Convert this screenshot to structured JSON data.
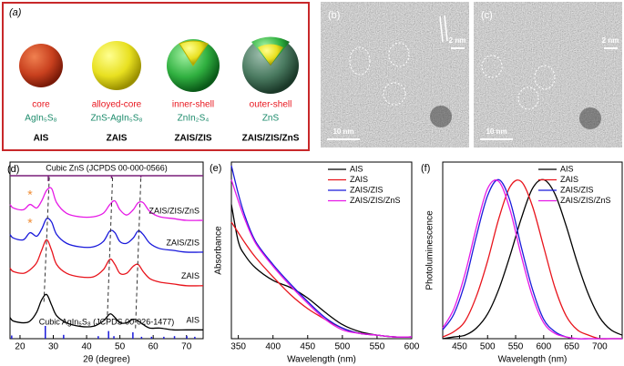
{
  "panel_a": {
    "label": "(a)",
    "items": [
      {
        "role": "core",
        "composition": "AgIn₅S₈",
        "name": "AIS"
      },
      {
        "role": "alloyed-core",
        "composition": "ZnS-AgIn₅S₈",
        "name": "ZAIS"
      },
      {
        "role": "inner-shell",
        "composition": "ZnIn₂S₄",
        "name": "ZAIS/ZIS"
      },
      {
        "role": "outer-shell",
        "composition": "ZnS",
        "name": "ZAIS/ZIS/ZnS"
      }
    ]
  },
  "panel_b": {
    "label": "(b)",
    "inset_scale": "2 nm",
    "scale": "10 nm"
  },
  "panel_c": {
    "label": "(c)",
    "inset_scale": "2 nm",
    "scale": "10 nm"
  },
  "chart_data": [
    {
      "type": "line",
      "panel_label": "(d)",
      "xlabel": "2θ (degree)",
      "xlim": [
        17,
        75
      ],
      "xticks": [
        20,
        30,
        40,
        50,
        60,
        70
      ],
      "ylim": [
        0,
        10
      ],
      "x": [
        17,
        18,
        21,
        23,
        25,
        26.5,
        28,
        29.5,
        31,
        34,
        38,
        42,
        45,
        47,
        48.5,
        50,
        52,
        54,
        55.5,
        57,
        59,
        62,
        66,
        70,
        75
      ],
      "series": [
        {
          "name": "AIS",
          "color": "#000000",
          "values": [
            1.2,
            1.0,
            0.9,
            1.0,
            1.5,
            2.2,
            2.5,
            1.9,
            1.3,
            0.9,
            0.7,
            0.7,
            1.0,
            1.4,
            1.2,
            0.9,
            0.9,
            1.1,
            1.0,
            0.8,
            0.6,
            0.6,
            0.5,
            0.5,
            0.5
          ]
        },
        {
          "name": "ZAIS",
          "color": "#e8141c",
          "values": [
            4.0,
            3.8,
            3.7,
            3.9,
            4.3,
            5.0,
            5.6,
            5.0,
            4.2,
            3.7,
            3.5,
            3.5,
            3.9,
            4.5,
            4.2,
            3.7,
            3.7,
            4.1,
            4.2,
            3.8,
            3.4,
            3.2,
            3.1,
            3.0,
            3.0
          ]
        },
        {
          "name": "ZAIS/ZIS",
          "color": "#1a1adb",
          "values": [
            5.9,
            5.7,
            5.6,
            6.0,
            5.8,
            6.2,
            6.8,
            6.6,
            5.9,
            5.4,
            5.2,
            5.2,
            5.5,
            6.1,
            6.0,
            5.5,
            5.4,
            5.7,
            6.1,
            5.9,
            5.4,
            5.1,
            5.0,
            4.9,
            4.9
          ]
        },
        {
          "name": "ZAIS/ZIS/ZnS",
          "color": "#e619e6",
          "values": [
            7.6,
            7.4,
            7.3,
            7.6,
            7.4,
            7.8,
            8.4,
            8.5,
            7.7,
            7.1,
            6.9,
            6.9,
            7.1,
            7.6,
            7.8,
            7.3,
            7.0,
            7.3,
            7.7,
            7.7,
            7.2,
            6.9,
            6.8,
            6.7,
            6.7
          ]
        }
      ],
      "reference_patterns": [
        {
          "name": "Cubic ZnS (JCPDS 00-000-0566)",
          "color": "#7a1f7a",
          "x": [
            28.5,
            47.5,
            56.3
          ],
          "values": [
            100,
            50,
            30
          ]
        },
        {
          "name": "Cubic AgIn₅S₈ (JCPDS 00-026-1477)",
          "color": "#1a1adb",
          "x": [
            17.5,
            27.6,
            33.1,
            43.5,
            46.6,
            48.2,
            53.9,
            56.5,
            59.5,
            63.2,
            66.4,
            70.1,
            72.5
          ],
          "values": [
            25,
            100,
            30,
            20,
            60,
            20,
            50,
            15,
            15,
            15,
            20,
            20,
            15
          ]
        }
      ],
      "annotations": [
        "*",
        "*"
      ]
    },
    {
      "type": "line",
      "panel_label": "(e)",
      "xlabel": "Wavelength (nm)",
      "ylabel": "Absorbance",
      "xlim": [
        340,
        600
      ],
      "xticks": [
        350,
        400,
        450,
        500,
        550,
        600
      ],
      "ylim": [
        0,
        1
      ],
      "legend": "upper right",
      "x": [
        340,
        350,
        360,
        375,
        400,
        425,
        450,
        475,
        500,
        525,
        550,
        575,
        600
      ],
      "series": [
        {
          "name": "AIS",
          "color": "#000000",
          "values": [
            0.76,
            0.55,
            0.47,
            0.4,
            0.33,
            0.29,
            0.23,
            0.15,
            0.08,
            0.04,
            0.02,
            0.01,
            0.01
          ]
        },
        {
          "name": "ZAIS",
          "color": "#e8141c",
          "values": [
            0.66,
            0.6,
            0.54,
            0.46,
            0.35,
            0.25,
            0.17,
            0.11,
            0.06,
            0.03,
            0.02,
            0.01,
            0.01
          ]
        },
        {
          "name": "ZAIS/ZIS",
          "color": "#1a1adb",
          "values": [
            0.98,
            0.82,
            0.69,
            0.55,
            0.42,
            0.31,
            0.21,
            0.12,
            0.06,
            0.03,
            0.02,
            0.01,
            0.01
          ]
        },
        {
          "name": "ZAIS/ZIS/ZnS",
          "color": "#e619e6",
          "values": [
            0.9,
            0.78,
            0.67,
            0.54,
            0.41,
            0.3,
            0.2,
            0.11,
            0.05,
            0.03,
            0.02,
            0.01,
            0.01
          ]
        }
      ]
    },
    {
      "type": "line",
      "panel_label": "(f)",
      "xlabel": "Wavelength (nm)",
      "ylabel": "Photoluminescence",
      "xlim": [
        420,
        740
      ],
      "xticks": [
        450,
        500,
        550,
        600,
        650,
        700
      ],
      "ylim": [
        0,
        1
      ],
      "legend": "upper right",
      "x": [
        420,
        440,
        460,
        480,
        500,
        520,
        540,
        560,
        580,
        600,
        620,
        640,
        660,
        680,
        700,
        720,
        740
      ],
      "series": [
        {
          "name": "AIS",
          "color": "#000000",
          "values": [
            0.0,
            0.01,
            0.02,
            0.06,
            0.14,
            0.28,
            0.47,
            0.68,
            0.85,
            0.9,
            0.82,
            0.64,
            0.43,
            0.25,
            0.12,
            0.05,
            0.02
          ]
        },
        {
          "name": "ZAIS",
          "color": "#e8141c",
          "values": [
            0.01,
            0.04,
            0.1,
            0.24,
            0.44,
            0.68,
            0.86,
            0.89,
            0.75,
            0.52,
            0.29,
            0.13,
            0.05,
            0.02,
            0.0,
            0.0,
            0.0
          ]
        },
        {
          "name": "ZAIS/ZIS",
          "color": "#1a1adb",
          "values": [
            0.05,
            0.14,
            0.32,
            0.58,
            0.81,
            0.9,
            0.78,
            0.52,
            0.28,
            0.11,
            0.04,
            0.01,
            0.0,
            0.0,
            0.0,
            0.0,
            0.0
          ]
        },
        {
          "name": "ZAIS/ZIS/ZnS",
          "color": "#e619e6",
          "values": [
            0.06,
            0.17,
            0.37,
            0.63,
            0.85,
            0.89,
            0.73,
            0.47,
            0.24,
            0.09,
            0.03,
            0.01,
            0.0,
            0.0,
            0.0,
            0.0,
            0.0
          ]
        }
      ]
    }
  ]
}
